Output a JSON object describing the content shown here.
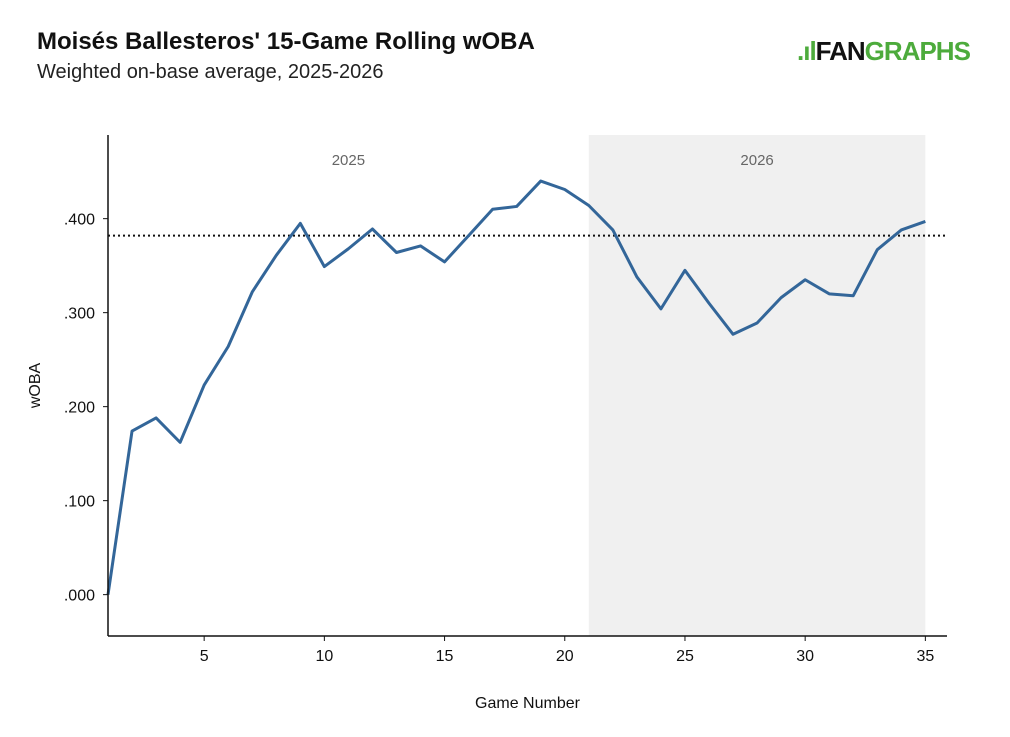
{
  "header": {
    "title": "Moisés Ballesteros' 15-Game Rolling wOBA",
    "subtitle": "Weighted on-base average, 2025-2026"
  },
  "logo": {
    "text_a": "FAN",
    "text_b": "GRAPHS",
    "color": "#4dab3c"
  },
  "chart_data": {
    "type": "line",
    "xlabel": "Game Number",
    "ylabel": "wOBA",
    "xlim": [
      1,
      35.9
    ],
    "ylim": [
      -0.044,
      0.489
    ],
    "xticks": [
      5,
      10,
      15,
      20,
      25,
      30,
      35
    ],
    "yticks": [
      0,
      0.1,
      0.2,
      0.3,
      0.4
    ],
    "ytick_labels": [
      ".000",
      ".100",
      ".200",
      ".300",
      ".400"
    ],
    "grid": false,
    "reference_line": {
      "y": 0.382,
      "style": "dotted"
    },
    "regions": [
      {
        "label": "2025",
        "x": [
          1,
          21
        ],
        "shaded": false
      },
      {
        "label": "2026",
        "x": [
          21,
          35
        ],
        "shaded": true,
        "color": "#f0f0f0"
      }
    ],
    "line_color": "#336699",
    "x": [
      1,
      2,
      3,
      4,
      5,
      6,
      7,
      8,
      9,
      10,
      11,
      12,
      13,
      14,
      15,
      16,
      17,
      18,
      19,
      20,
      21,
      22,
      23,
      24,
      25,
      26,
      27,
      28,
      29,
      30,
      31,
      32,
      33,
      34,
      35
    ],
    "values": [
      0.0,
      0.174,
      0.188,
      0.162,
      0.223,
      0.264,
      0.322,
      0.361,
      0.395,
      0.349,
      0.368,
      0.389,
      0.364,
      0.371,
      0.354,
      0.382,
      0.41,
      0.413,
      0.44,
      0.431,
      0.414,
      0.388,
      0.338,
      0.304,
      0.345,
      0.31,
      0.277,
      0.289,
      0.316,
      0.335,
      0.32,
      0.318,
      0.367,
      0.388,
      0.397
    ]
  }
}
